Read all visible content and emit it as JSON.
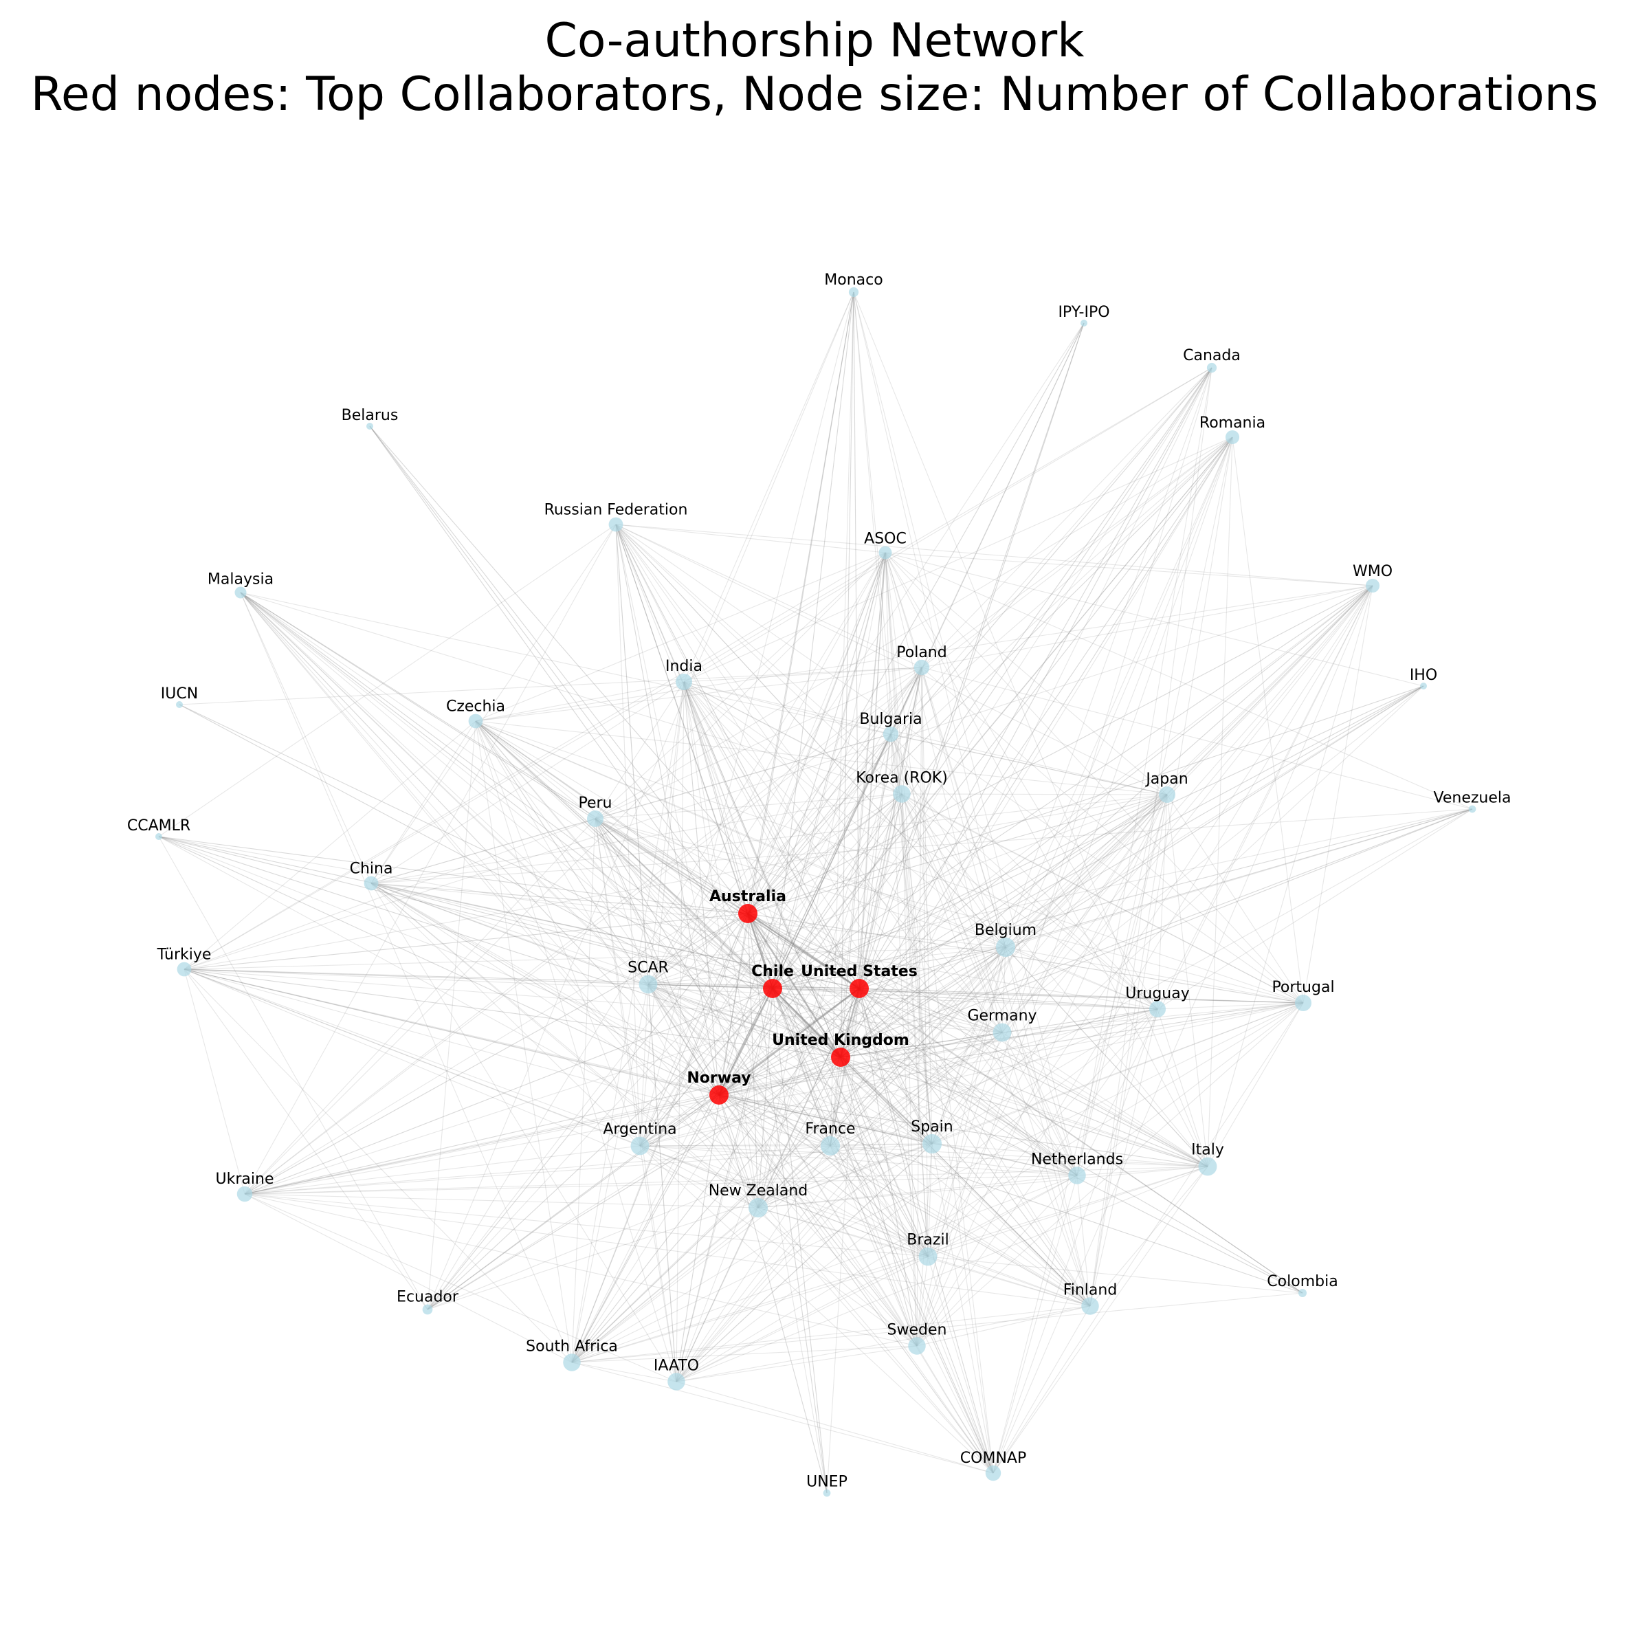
{
  "title": {
    "line1": "Co-authorship Network",
    "line2": "Red nodes: Top Collaborators, Node size: Number of Collaborations"
  },
  "colors": {
    "top": "#ff0000",
    "regular": "#add8e6",
    "edge": "#888888"
  },
  "nodes": [
    {
      "id": "Monaco",
      "collab": 14,
      "top": false
    },
    {
      "id": "IPY-IPO",
      "collab": 1,
      "top": false
    },
    {
      "id": "Canada",
      "collab": 14,
      "top": false
    },
    {
      "id": "Romania",
      "collab": 28,
      "top": false
    },
    {
      "id": "Belarus",
      "collab": 1,
      "top": false
    },
    {
      "id": "Russian Federation",
      "collab": 30,
      "top": false
    },
    {
      "id": "ASOC",
      "collab": 25,
      "top": false
    },
    {
      "id": "WMO",
      "collab": 28,
      "top": false
    },
    {
      "id": "Malaysia",
      "collab": 20,
      "top": false
    },
    {
      "id": "Poland",
      "collab": 35,
      "top": false
    },
    {
      "id": "India",
      "collab": 40,
      "top": false
    },
    {
      "id": "IHO",
      "collab": 6,
      "top": false
    },
    {
      "id": "IUCN",
      "collab": 2,
      "top": false
    },
    {
      "id": "Czechia",
      "collab": 30,
      "top": false
    },
    {
      "id": "Bulgaria",
      "collab": 35,
      "top": false
    },
    {
      "id": "Korea (ROK)",
      "collab": 45,
      "top": false
    },
    {
      "id": "Japan",
      "collab": 40,
      "top": false
    },
    {
      "id": "Venezuela",
      "collab": 8,
      "top": false
    },
    {
      "id": "Peru",
      "collab": 40,
      "top": false
    },
    {
      "id": "CCAMLR",
      "collab": 4,
      "top": false
    },
    {
      "id": "China",
      "collab": 30,
      "top": false
    },
    {
      "id": "Australia",
      "collab": 70,
      "top": true
    },
    {
      "id": "Belgium",
      "collab": 55,
      "top": false
    },
    {
      "id": "Türkiye",
      "collab": 30,
      "top": false
    },
    {
      "id": "SCAR",
      "collab": 50,
      "top": false
    },
    {
      "id": "Chile",
      "collab": 70,
      "top": true
    },
    {
      "id": "United States",
      "collab": 70,
      "top": true
    },
    {
      "id": "Uruguay",
      "collab": 40,
      "top": false
    },
    {
      "id": "Portugal",
      "collab": 40,
      "top": false
    },
    {
      "id": "Germany",
      "collab": 50,
      "top": false
    },
    {
      "id": "United Kingdom",
      "collab": 70,
      "top": true
    },
    {
      "id": "Norway",
      "collab": 70,
      "top": true
    },
    {
      "id": "Argentina",
      "collab": 50,
      "top": false
    },
    {
      "id": "France",
      "collab": 55,
      "top": false
    },
    {
      "id": "Spain",
      "collab": 55,
      "top": false
    },
    {
      "id": "Netherlands",
      "collab": 45,
      "top": false
    },
    {
      "id": "Italy",
      "collab": 50,
      "top": false
    },
    {
      "id": "Ukraine",
      "collab": 35,
      "top": false
    },
    {
      "id": "New Zealand",
      "collab": 55,
      "top": false
    },
    {
      "id": "Brazil",
      "collab": 50,
      "top": false
    },
    {
      "id": "Colombia",
      "collab": 10,
      "top": false
    },
    {
      "id": "Ecuador",
      "collab": 15,
      "top": false
    },
    {
      "id": "Finland",
      "collab": 45,
      "top": false
    },
    {
      "id": "Sweden",
      "collab": 45,
      "top": false
    },
    {
      "id": "South Africa",
      "collab": 45,
      "top": false
    },
    {
      "id": "IAATO",
      "collab": 45,
      "top": false
    },
    {
      "id": "UNEP",
      "collab": 8,
      "top": false
    },
    {
      "id": "COMNAP",
      "collab": 35,
      "top": false
    }
  ]
}
